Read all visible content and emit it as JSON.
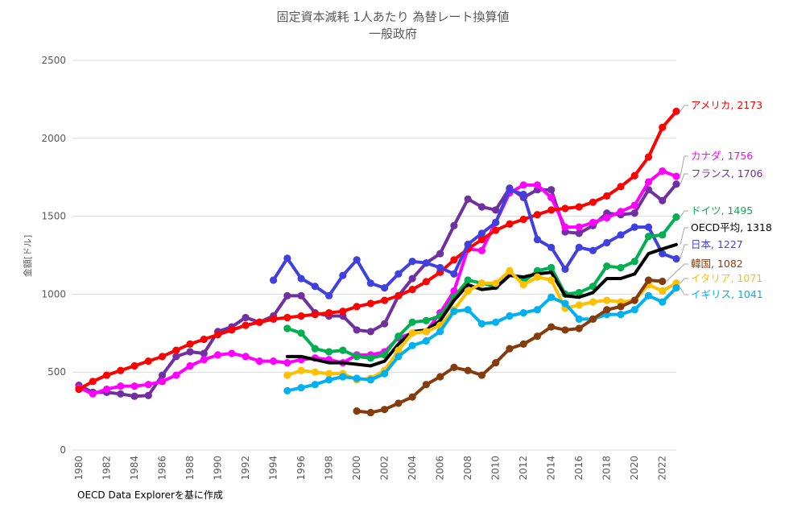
{
  "chart_data": {
    "type": "line",
    "title": "固定資本減耗 1人あたり 為替レート換算値",
    "subtitle": "一般政府",
    "xlabel": "",
    "ylabel": "金額[ドル]",
    "xlim": [
      1980,
      2023
    ],
    "ylim": [
      0,
      2500
    ],
    "yticks": [
      0,
      500,
      1000,
      1500,
      2000,
      2500
    ],
    "xticks": [
      1980,
      1982,
      1984,
      1986,
      1988,
      1990,
      1992,
      1994,
      1996,
      1998,
      2000,
      2002,
      2004,
      2006,
      2008,
      2010,
      2012,
      2014,
      2016,
      2018,
      2020,
      2022
    ],
    "grid": true,
    "legend": "end-of-line labels",
    "series": [
      {
        "name": "フランス",
        "end_label": "フランス, 1706",
        "color": "#7030A0",
        "start": 1980,
        "values": [
          415,
          370,
          370,
          360,
          345,
          350,
          480,
          600,
          630,
          620,
          760,
          790,
          850,
          820,
          860,
          990,
          990,
          880,
          860,
          860,
          770,
          760,
          810,
          990,
          1100,
          1200,
          1260,
          1440,
          1610,
          1560,
          1540,
          1680,
          1620,
          1670,
          1670,
          1400,
          1390,
          1440,
          1520,
          1510,
          1520,
          1670,
          1600,
          1706
        ]
      },
      {
        "name": "カナダ",
        "end_label": "カナダ, 1756",
        "color": "#FF00FF",
        "start": 1980,
        "values": [
          400,
          360,
          390,
          410,
          410,
          420,
          440,
          480,
          540,
          580,
          610,
          620,
          600,
          570,
          570,
          560,
          580,
          590,
          580,
          560,
          610,
          610,
          630,
          720,
          750,
          760,
          880,
          1020,
          1290,
          1280,
          1460,
          1650,
          1700,
          1700,
          1620,
          1430,
          1430,
          1460,
          1490,
          1530,
          1570,
          1720,
          1790,
          1756
        ]
      },
      {
        "name": "アメリカ",
        "end_label": "アメリカ, 2173",
        "color": "#FF0000",
        "start": 1980,
        "values": [
          390,
          440,
          480,
          510,
          540,
          570,
          600,
          640,
          680,
          710,
          740,
          770,
          800,
          820,
          840,
          850,
          860,
          870,
          880,
          890,
          920,
          940,
          960,
          990,
          1030,
          1080,
          1140,
          1220,
          1290,
          1350,
          1410,
          1450,
          1480,
          1510,
          1540,
          1550,
          1560,
          1590,
          1630,
          1690,
          1760,
          1880,
          2070,
          2173
        ]
      },
      {
        "name": "日本",
        "end_label": "日本, 1227",
        "color": "#4040E0",
        "start": 1994,
        "values": [
          1090,
          1230,
          1100,
          1050,
          990,
          1120,
          1220,
          1070,
          1040,
          1130,
          1210,
          1200,
          1170,
          1130,
          1320,
          1390,
          1460,
          1670,
          1640,
          1350,
          1300,
          1160,
          1300,
          1280,
          1330,
          1380,
          1430,
          1430,
          1260,
          1227
        ]
      },
      {
        "name": "ドイツ",
        "end_label": "ドイツ, 1495",
        "color": "#00B050",
        "start": 1995,
        "values": [
          780,
          750,
          650,
          630,
          640,
          600,
          590,
          610,
          730,
          820,
          830,
          860,
          980,
          1090,
          1070,
          1050,
          1140,
          1080,
          1150,
          1170,
          1000,
          1010,
          1050,
          1180,
          1170,
          1210,
          1370,
          1380,
          1495
        ]
      },
      {
        "name": "OECD平均",
        "end_label": "OECD平均, 1318",
        "color": "#000000",
        "start": 1995,
        "values": [
          600,
          600,
          580,
          560,
          560,
          550,
          540,
          570,
          680,
          760,
          770,
          830,
          960,
          1060,
          1030,
          1040,
          1120,
          1110,
          1130,
          1140,
          990,
          980,
          1010,
          1100,
          1100,
          1130,
          1260,
          1290,
          1318
        ]
      },
      {
        "name": "イタリア",
        "end_label": "イタリア, 1071",
        "color": "#FFC000",
        "start": 1995,
        "values": [
          480,
          510,
          500,
          490,
          490,
          450,
          460,
          510,
          640,
          750,
          760,
          800,
          900,
          1020,
          1070,
          1070,
          1150,
          1060,
          1110,
          1090,
          910,
          930,
          950,
          960,
          950,
          960,
          1060,
          1020,
          1071
        ]
      },
      {
        "name": "イギリス",
        "end_label": "イギリス, 1041",
        "color": "#00B0F0",
        "start": 1995,
        "values": [
          380,
          400,
          420,
          450,
          470,
          460,
          450,
          490,
          600,
          670,
          700,
          760,
          890,
          900,
          810,
          820,
          860,
          880,
          900,
          980,
          940,
          840,
          840,
          870,
          870,
          900,
          990,
          950,
          1041
        ]
      },
      {
        "name": "韓国",
        "end_label": "韓国, 1082",
        "color": "#843C0C",
        "start": 2000,
        "values": [
          250,
          240,
          260,
          300,
          340,
          420,
          470,
          530,
          510,
          480,
          560,
          650,
          680,
          730,
          790,
          770,
          780,
          840,
          900,
          920,
          960,
          1090,
          1082
        ]
      }
    ]
  },
  "footer": {
    "source": "OECD Data Explorerを基に作成"
  }
}
